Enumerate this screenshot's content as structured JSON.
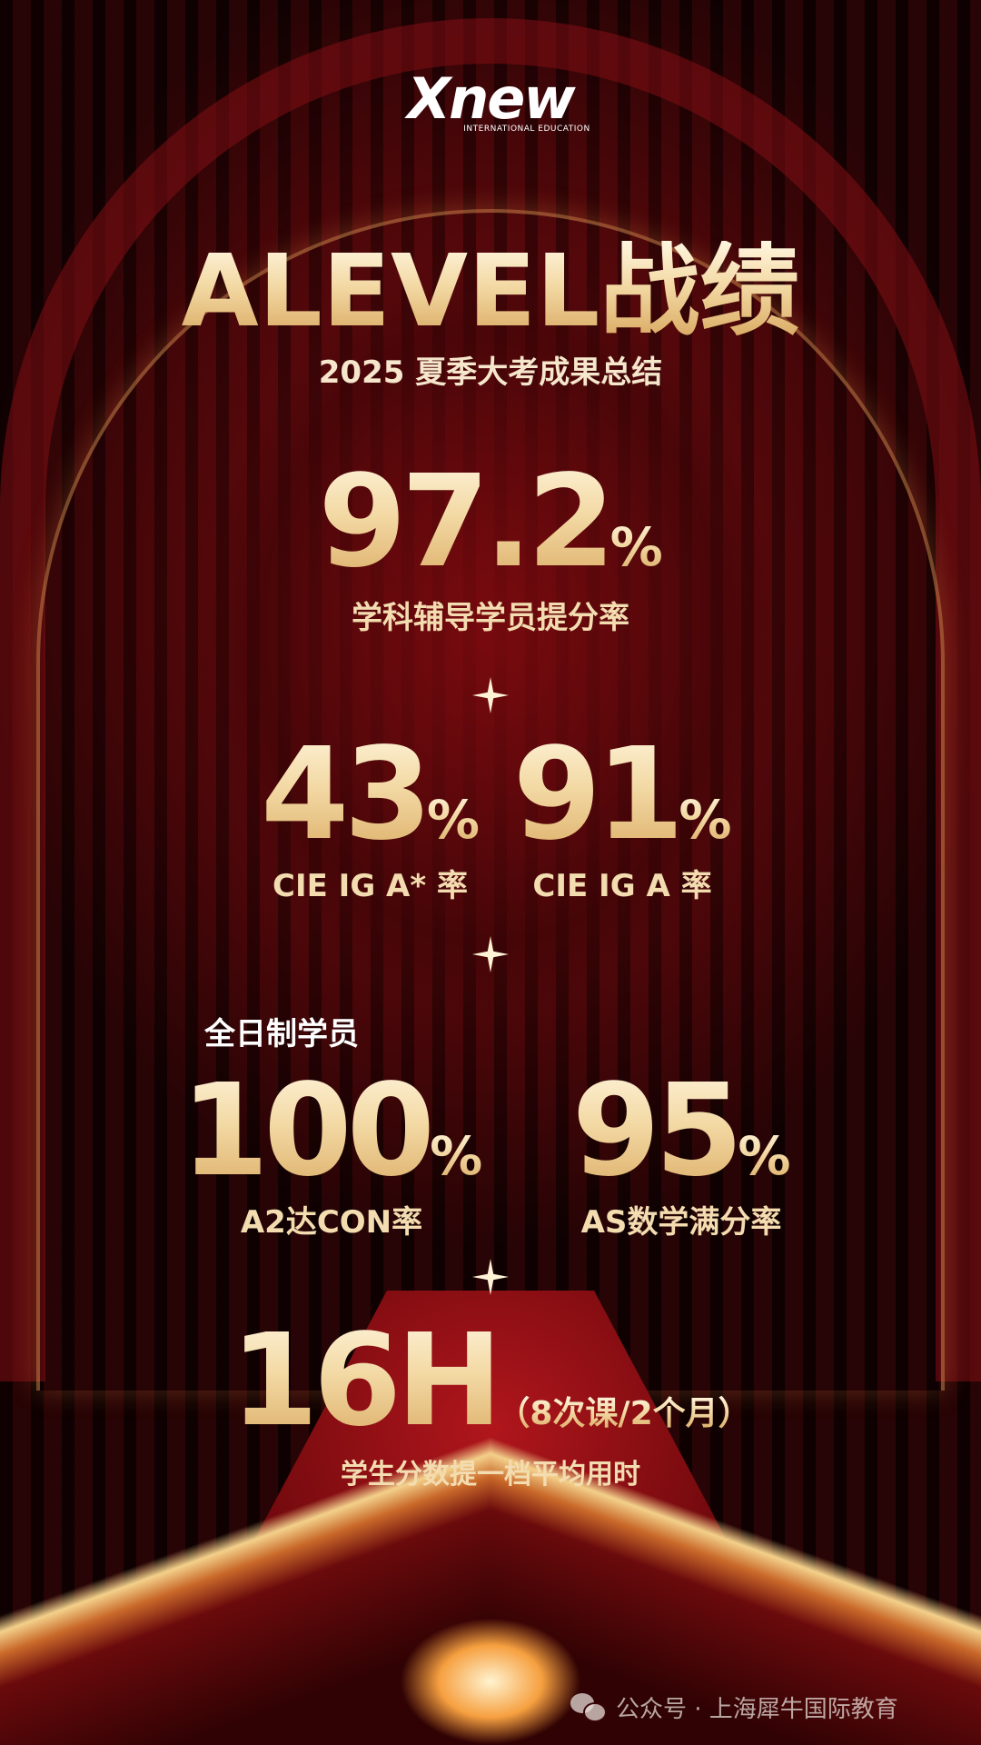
{
  "logo": {
    "brand": "Xnew",
    "tagline": "INTERNATIONAL EDUCATION"
  },
  "title": "ALEVEL战绩",
  "subtitle": "2025 夏季大考成果总结",
  "stats": {
    "improve": {
      "value": "97.2",
      "unit": "%",
      "label": "学科辅导学员提分率"
    },
    "astar": {
      "value": "43",
      "unit": "%",
      "label": "CIE IG A* 率"
    },
    "a": {
      "value": "91",
      "unit": "%",
      "label": "CIE IG A 率"
    },
    "fulltime_heading": "全日制学员",
    "a2con": {
      "value": "100",
      "unit": "%",
      "label": "A2达CON率"
    },
    "asmath": {
      "value": "95",
      "unit": "%",
      "label": "AS数学满分率"
    },
    "hours": {
      "value": "16H",
      "note": "（8次课/2个月）",
      "label": "学生分数提一档平均用时"
    }
  },
  "watermark": {
    "icon": "wechat-icon",
    "text": "公众号 · 上海犀牛国际教育"
  },
  "colors": {
    "gold": "#f3d9a4",
    "background": "#3a0406",
    "accent_red": "#b0161c"
  }
}
